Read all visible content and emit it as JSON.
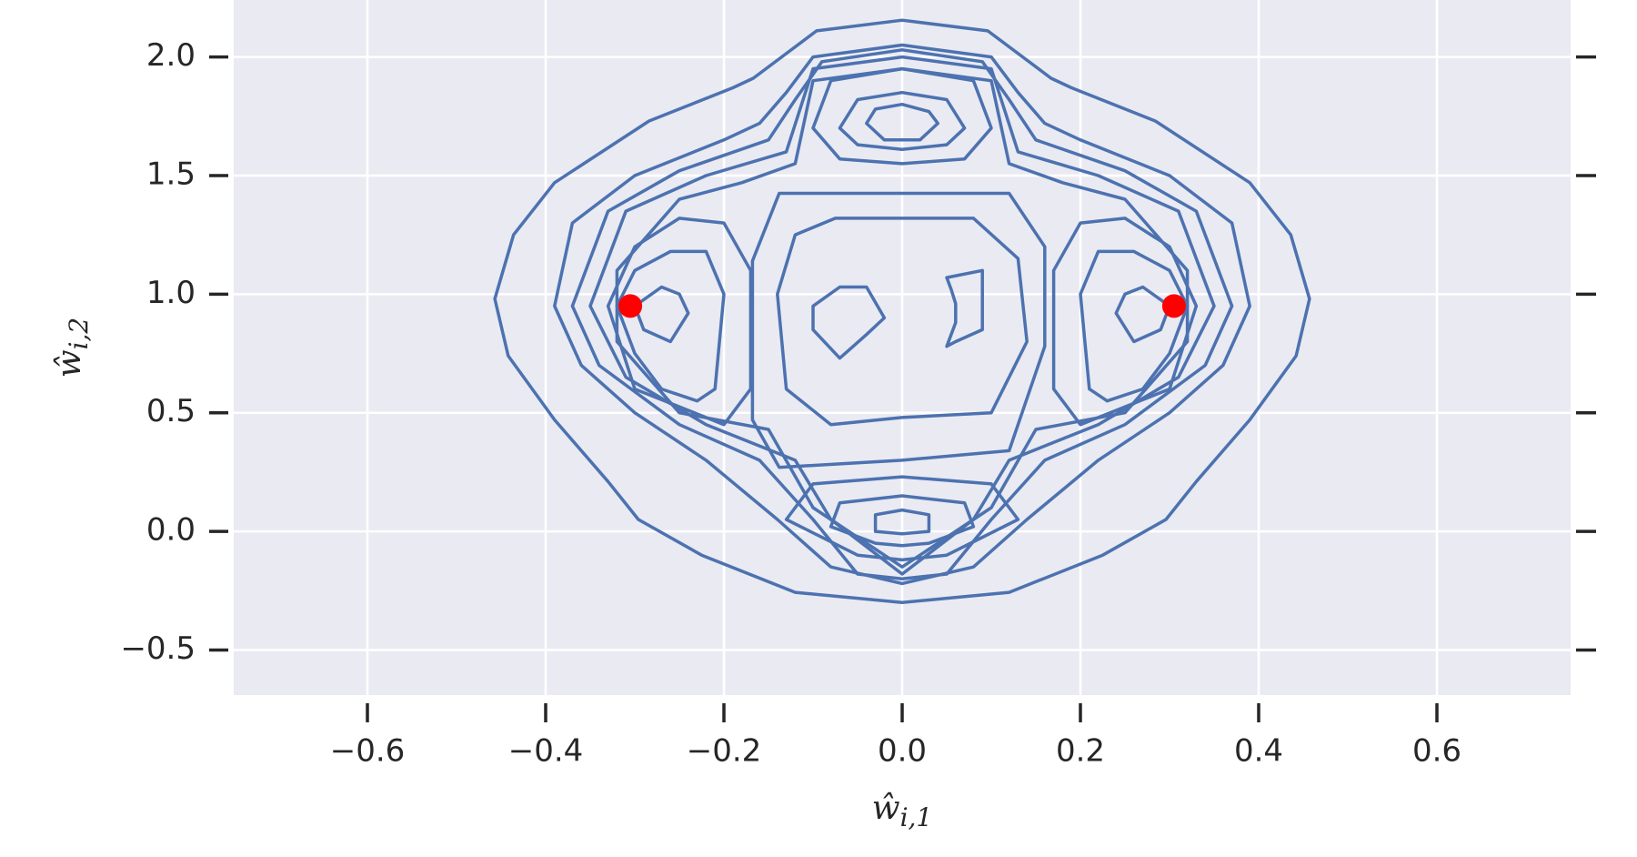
{
  "chart_data": {
    "type": "contour",
    "xlabel": {
      "text": "ŵ",
      "subscript": "i,1"
    },
    "ylabel": {
      "text": "ŵ",
      "subscript": "i,2"
    },
    "xlim": [
      -0.75,
      0.75
    ],
    "ylim": [
      -0.69,
      2.24
    ],
    "xticks": [
      {
        "value": -0.6,
        "label": "−0.6"
      },
      {
        "value": -0.4,
        "label": "−0.4"
      },
      {
        "value": -0.2,
        "label": "−0.2"
      },
      {
        "value": 0,
        "label": "0.0"
      },
      0.2,
      0.4,
      0.6
    ],
    "yticks": [
      {
        "value": -0.5,
        "label": "−0.5"
      },
      {
        "value": 0,
        "label": "0.0"
      },
      0.5,
      {
        "value": 1,
        "label": "1.0"
      },
      1.5,
      {
        "value": 2,
        "label": "2.0"
      }
    ],
    "grid": true,
    "contour_color": "#4c72b0",
    "contours": [
      {
        "x": [
          0,
          0.096,
          0.167,
          0.19,
          0.284,
          0.39,
          0.436,
          0.457,
          0.442,
          0.39,
          0.33,
          0.296,
          0.225,
          0.12,
          0,
          -0.12,
          -0.225,
          -0.296,
          -0.33,
          -0.39,
          -0.442,
          -0.457,
          -0.436,
          -0.39,
          -0.284,
          -0.19,
          -0.167,
          -0.096
        ],
        "y": [
          2.155,
          2.11,
          1.91,
          1.87,
          1.73,
          1.47,
          1.25,
          0.98,
          0.74,
          0.47,
          0.21,
          0.05,
          -0.1,
          -0.257,
          -0.3,
          -0.257,
          -0.1,
          0.05,
          0.21,
          0.47,
          0.74,
          0.98,
          1.25,
          1.47,
          1.73,
          1.87,
          1.91,
          2.11
        ]
      },
      {
        "x": [
          0,
          0.1,
          0.13,
          0.16,
          0.2,
          0.3,
          0.37,
          0.39,
          0.36,
          0.3,
          0.22,
          0.14,
          0.08,
          0,
          -0.08,
          -0.14,
          -0.22,
          -0.3,
          -0.36,
          -0.39,
          -0.37,
          -0.3,
          -0.2,
          -0.16,
          -0.13,
          -0.1
        ],
        "y": [
          2.05,
          2.0,
          1.85,
          1.72,
          1.65,
          1.5,
          1.3,
          0.95,
          0.7,
          0.5,
          0.3,
          0.05,
          -0.15,
          -0.22,
          -0.15,
          0.05,
          0.3,
          0.5,
          0.7,
          0.95,
          1.3,
          1.5,
          1.65,
          1.72,
          1.85,
          2.0
        ]
      },
      {
        "x": [
          0,
          0.09,
          0.12,
          0.15,
          0.25,
          0.33,
          0.37,
          0.34,
          0.25,
          0.16,
          0.1,
          0.05,
          0,
          -0.05,
          -0.1,
          -0.16,
          -0.25,
          -0.34,
          -0.37,
          -0.33,
          -0.25,
          -0.15,
          -0.12,
          -0.09
        ],
        "y": [
          2.03,
          1.98,
          1.82,
          1.65,
          1.52,
          1.35,
          0.95,
          0.7,
          0.45,
          0.3,
          0.05,
          -0.18,
          -0.2,
          -0.18,
          0.05,
          0.3,
          0.45,
          0.7,
          0.95,
          1.35,
          1.52,
          1.65,
          1.82,
          1.98
        ]
      },
      {
        "x": [
          0,
          0.1,
          0.13,
          0.22,
          0.31,
          0.35,
          0.31,
          0.22,
          0.12,
          0.08,
          0,
          -0.08,
          -0.12,
          -0.22,
          -0.31,
          -0.35,
          -0.31,
          -0.22,
          -0.13,
          -0.1
        ],
        "y": [
          2.0,
          1.95,
          1.6,
          1.5,
          1.35,
          0.95,
          0.65,
          0.45,
          0.3,
          0.05,
          -0.18,
          0.05,
          0.3,
          0.45,
          0.65,
          0.95,
          1.35,
          1.5,
          1.6,
          1.95
        ]
      },
      {
        "x": [
          0,
          0.1,
          0.12,
          0.18,
          0.25,
          0.32,
          0.32,
          0.25,
          0.15,
          0.1,
          0,
          -0.1,
          -0.15,
          -0.25,
          -0.32,
          -0.32,
          -0.25,
          -0.18,
          -0.12,
          -0.1
        ],
        "y": [
          1.95,
          1.9,
          1.55,
          1.47,
          1.4,
          1.1,
          0.8,
          0.5,
          0.43,
          0.1,
          -0.15,
          0.1,
          0.43,
          0.5,
          0.8,
          1.1,
          1.4,
          1.47,
          1.55,
          1.9
        ]
      },
      {
        "x": [
          -0.138,
          0.12,
          0.16,
          0.16,
          0.12,
          0,
          -0.138,
          -0.168,
          -0.168
        ],
        "y": [
          1.425,
          1.425,
          1.2,
          0.78,
          0.34,
          0.3,
          0.27,
          0.47,
          1.14
        ]
      },
      {
        "x": [
          -0.075,
          0.08,
          0.13,
          0.14,
          0.1,
          0,
          -0.08,
          -0.13,
          -0.14,
          -0.12
        ],
        "y": [
          1.32,
          1.32,
          1.15,
          0.8,
          0.5,
          0.48,
          0.45,
          0.6,
          1.0,
          1.25
        ]
      },
      {
        "x": [
          -0.07,
          -0.04,
          -0.02,
          -0.04,
          -0.07,
          -0.1,
          -0.1
        ],
        "y": [
          1.03,
          1.03,
          0.9,
          0.83,
          0.73,
          0.85,
          0.95
        ]
      },
      {
        "x": [
          0.05,
          0.09,
          0.09,
          0.06,
          0.05,
          0.06,
          0.06,
          0.055
        ],
        "y": [
          1.07,
          1.1,
          0.85,
          0.8,
          0.78,
          0.88,
          0.96,
          1.02
        ]
      },
      {
        "x": [
          0,
          0.08,
          0.1,
          0.07,
          0,
          -0.07,
          -0.1,
          -0.08
        ],
        "y": [
          1.95,
          1.9,
          1.7,
          1.57,
          1.55,
          1.57,
          1.7,
          1.9
        ]
      },
      {
        "x": [
          0,
          0.05,
          0.07,
          0.05,
          0,
          -0.05,
          -0.07,
          -0.05
        ],
        "y": [
          1.85,
          1.82,
          1.7,
          1.63,
          1.61,
          1.63,
          1.7,
          1.82
        ]
      },
      {
        "x": [
          0,
          0.03,
          0.04,
          0.02,
          -0.02,
          -0.04,
          -0.03
        ],
        "y": [
          1.8,
          1.77,
          1.72,
          1.65,
          1.65,
          1.72,
          1.78
        ]
      },
      {
        "x": [
          0,
          0.1,
          0.13,
          0.05,
          0,
          -0.05,
          -0.13,
          -0.1
        ],
        "y": [
          0.23,
          0.2,
          0.05,
          -0.1,
          -0.12,
          -0.1,
          0.05,
          0.2
        ]
      },
      {
        "x": [
          0,
          0.07,
          0.08,
          0.03,
          0,
          -0.03,
          -0.08,
          -0.07
        ],
        "y": [
          0.15,
          0.12,
          0.02,
          -0.05,
          -0.06,
          -0.05,
          0.02,
          0.12
        ]
      },
      {
        "x": [
          0,
          0.03,
          0.03,
          0,
          -0.03,
          -0.03
        ],
        "y": [
          0.09,
          0.07,
          0.0,
          -0.01,
          0.0,
          0.07
        ]
      },
      {
        "x": [
          -0.2,
          -0.25,
          -0.3,
          -0.33,
          -0.3,
          -0.2,
          -0.17,
          -0.17
        ],
        "y": [
          1.3,
          1.32,
          1.2,
          0.95,
          0.6,
          0.45,
          0.6,
          1.1
        ]
      },
      {
        "x": [
          -0.26,
          -0.22,
          -0.2,
          -0.21,
          -0.23,
          -0.27,
          -0.3,
          -0.32,
          -0.3
        ],
        "y": [
          1.18,
          1.18,
          1.0,
          0.6,
          0.55,
          0.6,
          0.75,
          0.95,
          1.1
        ]
      },
      {
        "x": [
          -0.27,
          -0.25,
          -0.24,
          -0.26,
          -0.29,
          -0.3
        ],
        "y": [
          1.03,
          1.0,
          0.92,
          0.8,
          0.85,
          0.95
        ]
      },
      {
        "x": [
          0.2,
          0.25,
          0.3,
          0.33,
          0.3,
          0.2,
          0.17,
          0.17
        ],
        "y": [
          1.3,
          1.32,
          1.2,
          0.95,
          0.6,
          0.45,
          0.6,
          1.1
        ]
      },
      {
        "x": [
          0.26,
          0.22,
          0.2,
          0.21,
          0.23,
          0.27,
          0.3,
          0.32,
          0.3
        ],
        "y": [
          1.18,
          1.18,
          1.0,
          0.6,
          0.55,
          0.6,
          0.75,
          0.95,
          1.1
        ]
      },
      {
        "x": [
          0.27,
          0.25,
          0.24,
          0.26,
          0.29,
          0.3
        ],
        "y": [
          1.03,
          1.0,
          0.92,
          0.8,
          0.85,
          0.95
        ]
      }
    ],
    "points": {
      "color": "#ff0000",
      "x": [
        -0.305,
        0.305
      ],
      "y": [
        0.95,
        0.95
      ]
    }
  }
}
